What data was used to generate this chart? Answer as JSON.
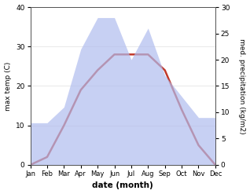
{
  "months": [
    "Jan",
    "Feb",
    "Mar",
    "Apr",
    "May",
    "Jun",
    "Jul",
    "Aug",
    "Sep",
    "Oct",
    "Nov",
    "Dec"
  ],
  "temperature": [
    0,
    2,
    10,
    19,
    24,
    28,
    28,
    28,
    24,
    14,
    5,
    0
  ],
  "precipitation": [
    8,
    8,
    11,
    22,
    28,
    28,
    20,
    26,
    17,
    13,
    9,
    9
  ],
  "temp_color": "#c0392b",
  "precip_color": "#b0bcee",
  "ylabel_left": "max temp (C)",
  "ylabel_right": "med. precipitation (kg/m2)",
  "xlabel": "date (month)",
  "ylim_left": [
    0,
    40
  ],
  "ylim_right": [
    0,
    30
  ],
  "yticks_left": [
    0,
    10,
    20,
    30,
    40
  ],
  "yticks_right": [
    0,
    5,
    10,
    15,
    20,
    25,
    30
  ],
  "bg_color": "#ffffff"
}
